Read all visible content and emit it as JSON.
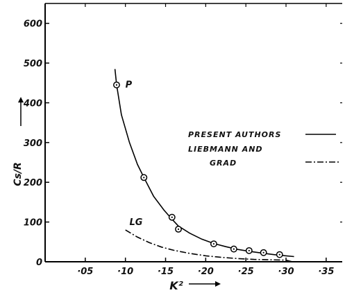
{
  "chart_data": {
    "type": "line",
    "xlabel": "K²",
    "ylabel": "Cs/R",
    "xlim": [
      0,
      0.37
    ],
    "ylim": [
      0,
      650
    ],
    "x_ticks": [
      0.05,
      0.1,
      0.15,
      0.2,
      0.25,
      0.3,
      0.35
    ],
    "x_tick_labels": [
      "·05",
      "·10",
      "·15",
      "·20",
      "·25",
      "·30",
      "·35"
    ],
    "y_ticks": [
      0,
      100,
      200,
      300,
      400,
      500,
      600
    ],
    "y_tick_labels": [
      "0",
      "100",
      "200",
      "300",
      "400",
      "500",
      "600"
    ],
    "grid": false,
    "legend_position": "right",
    "series": [
      {
        "name": "PRESENT AUTHORS",
        "style": "solid",
        "color": "#000000",
        "markers": "circle-dot",
        "points": [
          {
            "x": 0.089,
            "y": 445
          },
          {
            "x": 0.123,
            "y": 212
          },
          {
            "x": 0.158,
            "y": 112
          },
          {
            "x": 0.166,
            "y": 82
          },
          {
            "x": 0.21,
            "y": 45
          },
          {
            "x": 0.235,
            "y": 32
          },
          {
            "x": 0.254,
            "y": 28
          },
          {
            "x": 0.272,
            "y": 23
          },
          {
            "x": 0.292,
            "y": 18
          }
        ],
        "curve": [
          {
            "x": 0.087,
            "y": 485
          },
          {
            "x": 0.089,
            "y": 445
          },
          {
            "x": 0.095,
            "y": 370
          },
          {
            "x": 0.105,
            "y": 300
          },
          {
            "x": 0.115,
            "y": 245
          },
          {
            "x": 0.123,
            "y": 212
          },
          {
            "x": 0.135,
            "y": 165
          },
          {
            "x": 0.148,
            "y": 130
          },
          {
            "x": 0.158,
            "y": 107
          },
          {
            "x": 0.166,
            "y": 90
          },
          {
            "x": 0.18,
            "y": 72
          },
          {
            "x": 0.195,
            "y": 57
          },
          {
            "x": 0.21,
            "y": 46
          },
          {
            "x": 0.225,
            "y": 38
          },
          {
            "x": 0.24,
            "y": 31
          },
          {
            "x": 0.255,
            "y": 26
          },
          {
            "x": 0.27,
            "y": 22
          },
          {
            "x": 0.285,
            "y": 18
          },
          {
            "x": 0.3,
            "y": 15
          },
          {
            "x": 0.31,
            "y": 13
          }
        ]
      },
      {
        "name": "LIEBMANN AND GRAD",
        "style": "dash-dot",
        "color": "#000000",
        "curve": [
          {
            "x": 0.1,
            "y": 80
          },
          {
            "x": 0.115,
            "y": 62
          },
          {
            "x": 0.13,
            "y": 48
          },
          {
            "x": 0.145,
            "y": 37
          },
          {
            "x": 0.16,
            "y": 29
          },
          {
            "x": 0.18,
            "y": 21
          },
          {
            "x": 0.2,
            "y": 15
          },
          {
            "x": 0.22,
            "y": 11
          },
          {
            "x": 0.24,
            "y": 8
          },
          {
            "x": 0.26,
            "y": 6
          },
          {
            "x": 0.28,
            "y": 5
          },
          {
            "x": 0.3,
            "y": 4
          },
          {
            "x": 0.308,
            "y": 0
          }
        ]
      }
    ],
    "annotations": [
      {
        "text": "P",
        "x": 0.1,
        "y": 438
      },
      {
        "text": "LG",
        "x": 0.105,
        "y": 92
      }
    ],
    "legend": [
      {
        "line1": "PRESENT AUTHORS",
        "line2": "",
        "style": "solid"
      },
      {
        "line1": "LIEBMANN AND",
        "line2": "GRAD",
        "style": "dash-dot"
      }
    ]
  }
}
